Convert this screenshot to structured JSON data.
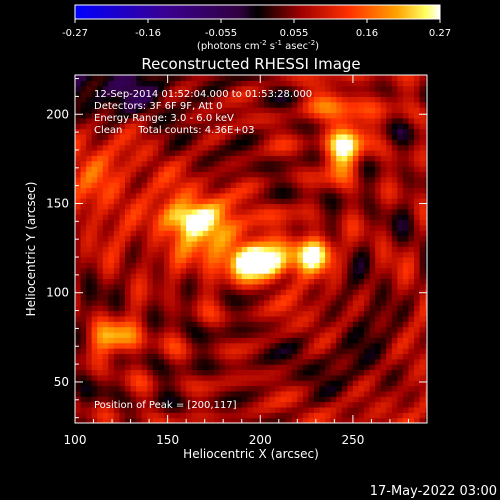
{
  "chart_data": {
    "type": "heatmap",
    "title": "Reconstructed RHESSI Image",
    "xlabel": "Heliocentric X (arcsec)",
    "ylabel": "Heliocentric Y (arcsec)",
    "xlim": [
      100,
      290
    ],
    "ylim": [
      27,
      222
    ],
    "xticks": [
      100,
      150,
      200,
      250
    ],
    "yticks": [
      50,
      100,
      150,
      200
    ],
    "colorbar": {
      "label_parts": [
        "(photons cm",
        "-2",
        " s",
        "-1",
        " asec",
        "-2",
        ")"
      ],
      "min": -0.27,
      "max": 0.27,
      "ticks": [
        "-0.27",
        "-0.16",
        "-0.055",
        "0.055",
        "0.16",
        "0.27"
      ],
      "colormap": "blue-black-red-yellow-white"
    },
    "annotations": [
      "12-Sep-2014 01:52:04.000 to 01:53:28.000",
      "Detectors: 3F 6F 9F, Att 0",
      "Energy Range: 3.0 - 6.0 keV",
      "Clean     Total counts: 4.36E+03"
    ],
    "peak_label": "Position of Peak = [200,117]",
    "peak": {
      "x": 200,
      "y": 117,
      "value": 0.27
    },
    "sources": [
      {
        "x": 200,
        "y": 117,
        "amplitude": 0.27,
        "sx": 10,
        "sy": 6
      },
      {
        "x": 228,
        "y": 122,
        "amplitude": 0.2,
        "sx": 9,
        "sy": 7
      },
      {
        "x": 245,
        "y": 180,
        "amplitude": 0.2,
        "sx": 7,
        "sy": 10
      },
      {
        "x": 160,
        "y": 142,
        "amplitude": 0.14,
        "sx": 10,
        "sy": 6
      },
      {
        "x": 123,
        "y": 75,
        "amplitude": 0.16,
        "sx": 9,
        "sy": 7
      },
      {
        "x": 175,
        "y": 130,
        "amplitude": 0.11,
        "sx": 22,
        "sy": 14
      },
      {
        "x": 245,
        "y": 205,
        "amplitude": 0.08,
        "sx": 14,
        "sy": 10
      },
      {
        "x": 130,
        "y": 165,
        "amplitude": 0.07,
        "sx": 25,
        "sy": 20
      }
    ],
    "negative_region": {
      "x": 125,
      "y": 212,
      "amplitude": -0.12,
      "sx": 25,
      "sy": 12
    }
  },
  "footer": {
    "timestamp": "17-May-2022 03:00"
  }
}
